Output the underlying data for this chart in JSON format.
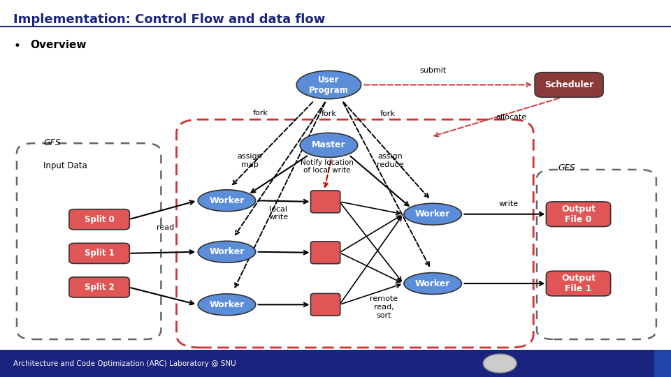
{
  "title": "Implementation: Control Flow and data flow",
  "subtitle": "Overview",
  "bg_color": "#ffffff",
  "title_color": "#1a237e",
  "footer_bg": "#1a237e",
  "footer_text": "Architecture and Code Optimization (ARC) Laboratory @ SNU"
}
